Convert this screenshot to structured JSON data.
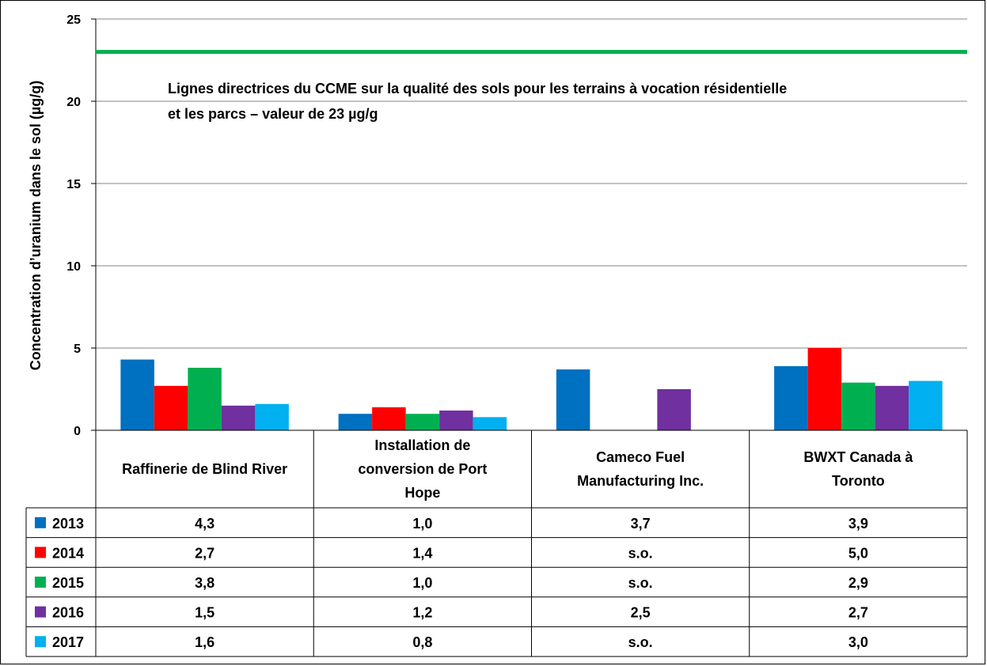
{
  "chart_data": {
    "type": "bar",
    "ylabel": "Concentration d’uranium dans le sol (µg/g)",
    "ylim": [
      0,
      25
    ],
    "yticks": [
      "0",
      "5",
      "10",
      "15",
      "20",
      "25"
    ],
    "ytick_values": [
      0,
      5,
      10,
      15,
      20,
      25
    ],
    "grid": true,
    "categories": [
      "Raffinerie de Blind River",
      "Installation de conversion de Port Hope",
      "Cameco Fuel Manufacturing Inc.",
      "BWXT Canada à Toronto"
    ],
    "category_lines": [
      [
        "Raffinerie de Blind River"
      ],
      [
        "Installation de",
        "conversion de Port",
        "Hope"
      ],
      [
        "Cameco Fuel",
        "Manufacturing Inc."
      ],
      [
        "BWXT Canada à",
        "Toronto"
      ]
    ],
    "series": [
      {
        "name": "2013",
        "color": "#0070C0",
        "values": [
          4.3,
          1.0,
          3.7,
          3.9
        ],
        "labels": [
          "4,3",
          "1,0",
          "3,7",
          "3,9"
        ]
      },
      {
        "name": "2014",
        "color": "#FF0000",
        "values": [
          2.7,
          1.4,
          null,
          5.0
        ],
        "labels": [
          "2,7",
          "1,4",
          "s.o.",
          "5,0"
        ]
      },
      {
        "name": "2015",
        "color": "#00B050",
        "values": [
          3.8,
          1.0,
          null,
          2.9
        ],
        "labels": [
          "3,8",
          "1,0",
          "s.o.",
          "2,9"
        ]
      },
      {
        "name": "2016",
        "color": "#7030A0",
        "values": [
          1.5,
          1.2,
          2.5,
          2.7
        ],
        "labels": [
          "1,5",
          "1,2",
          "2,5",
          "2,7"
        ]
      },
      {
        "name": "2017",
        "color": "#00B0F0",
        "values": [
          1.6,
          0.8,
          null,
          3.0
        ],
        "labels": [
          "1,6",
          "0,8",
          "s.o.",
          "3,0"
        ]
      }
    ],
    "reference_line": {
      "value": 23,
      "color": "#00B050",
      "label_lines": [
        "Lignes directrices du CCME sur la qualité des sols pour les terrains à vocation résidentielle",
        "et les parcs – valeur de 23 µg/g"
      ]
    },
    "legend": "data-table"
  }
}
